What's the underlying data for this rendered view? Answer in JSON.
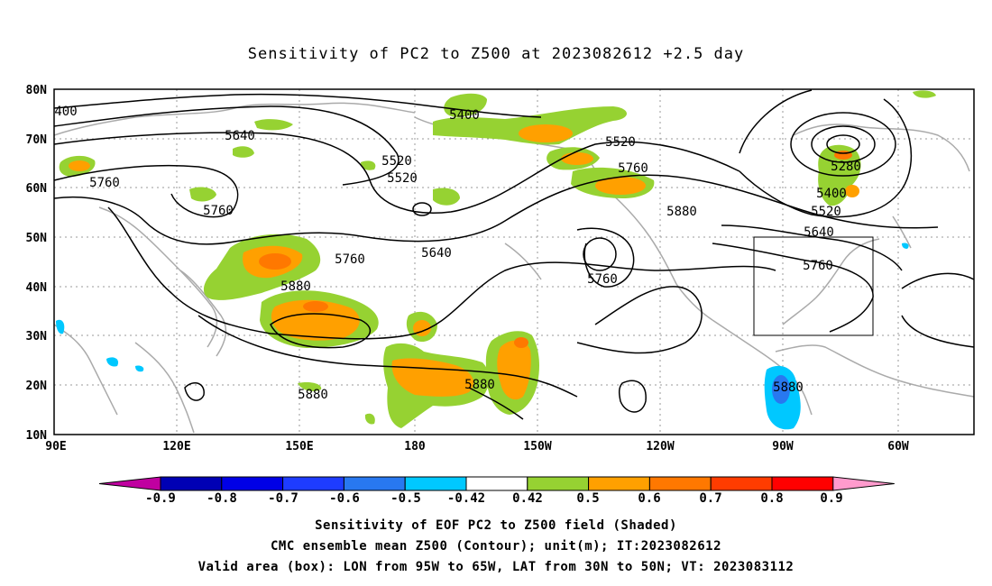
{
  "title": "Sensitivity of PC2 to Z500 at 2023082612 +2.5 day",
  "lat_labels": [
    "80N",
    "70N",
    "60N",
    "50N",
    "40N",
    "30N",
    "20N",
    "10N"
  ],
  "lon_labels": [
    "90E",
    "120E",
    "150E",
    "180",
    "150W",
    "120W",
    "90W",
    "60W"
  ],
  "contour_labels": [
    {
      "text": "400"
    },
    {
      "text": "5400"
    },
    {
      "text": "5640"
    },
    {
      "text": "5520"
    },
    {
      "text": "5520"
    },
    {
      "text": "5760"
    },
    {
      "text": "5760"
    },
    {
      "text": "5520"
    },
    {
      "text": "5760"
    },
    {
      "text": "5280"
    },
    {
      "text": "5400"
    },
    {
      "text": "5880"
    },
    {
      "text": "5520"
    },
    {
      "text": "5640"
    },
    {
      "text": "5640"
    },
    {
      "text": "5760"
    },
    {
      "text": "5760"
    },
    {
      "text": "5760"
    },
    {
      "text": "5880"
    },
    {
      "text": "5880"
    },
    {
      "text": "5880"
    },
    {
      "text": "5880"
    }
  ],
  "valid_box": {
    "lon_range": "95W to 65W",
    "lat_range": "30N to 50N"
  },
  "colorbar": {
    "labels": [
      "-0.9",
      "-0.8",
      "-0.7",
      "-0.6",
      "-0.5",
      "-0.42",
      "0.42",
      "0.5",
      "0.6",
      "0.7",
      "0.8",
      "0.9"
    ],
    "colors": [
      "#c000a0",
      "#0000b4",
      "#0000e6",
      "#1e3cff",
      "#2878f0",
      "#00c8ff",
      "#ffffff",
      "#96d232",
      "#ffa000",
      "#ff7800",
      "#ff3c00",
      "#ff0000",
      "#ff9bcd"
    ]
  },
  "captions": [
    "Sensitivity of EOF PC2 to Z500 field (Shaded)",
    "CMC ensemble mean Z500 (Contour); unit(m); IT:2023082612",
    "Valid area (box): LON from 95W to 65W, LAT from 30N to 50N; VT: 2023083112"
  ]
}
